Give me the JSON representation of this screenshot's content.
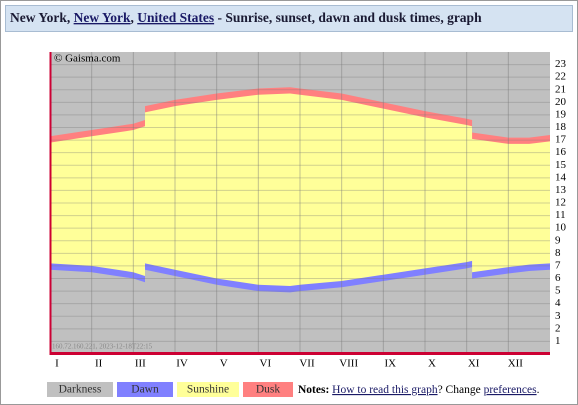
{
  "header": {
    "city": "New York",
    "separator": ", ",
    "region": "New York",
    "country": "United States",
    "suffix": " - Sunrise, sunset, dawn and dusk times, graph"
  },
  "chart_data": {
    "type": "area",
    "copyright": "© Gaisma.com",
    "stamp": "160.72.160.221, 2023-12-18T22:15",
    "x": [
      0,
      1,
      2,
      2.28,
      2.28,
      3,
      4,
      5,
      5.76,
      6,
      7,
      8,
      9,
      10,
      10.13,
      10.13,
      11,
      11.5,
      12
    ],
    "xlim": [
      0,
      12
    ],
    "xticks": [
      {
        "value": 0,
        "label": "I"
      },
      {
        "value": 1,
        "label": "II"
      },
      {
        "value": 2,
        "label": "III"
      },
      {
        "value": 3,
        "label": "IV"
      },
      {
        "value": 4,
        "label": "V"
      },
      {
        "value": 5,
        "label": "VI"
      },
      {
        "value": 6,
        "label": "VII"
      },
      {
        "value": 7,
        "label": "VIII"
      },
      {
        "value": 8,
        "label": "IX"
      },
      {
        "value": 9,
        "label": "X"
      },
      {
        "value": 10,
        "label": "XI"
      },
      {
        "value": 11,
        "label": "XII"
      }
    ],
    "ylim": [
      0,
      24
    ],
    "yticks": [
      1,
      2,
      3,
      4,
      5,
      6,
      7,
      8,
      9,
      10,
      11,
      12,
      13,
      14,
      15,
      16,
      17,
      18,
      19,
      20,
      21,
      22,
      23
    ],
    "grid": true,
    "series": [
      {
        "name": "Darkness",
        "color": "#c0c0c0",
        "values": [
          17.3,
          17.8,
          18.3,
          18.6,
          19.7,
          20.2,
          20.7,
          21.1,
          21.2,
          21.1,
          20.7,
          20.0,
          19.3,
          18.7,
          18.6,
          17.6,
          17.2,
          17.2,
          17.4
        ]
      },
      {
        "name": "Dawn",
        "color": "#8080ff",
        "values": [
          6.7,
          6.5,
          6.0,
          5.7,
          6.7,
          6.2,
          5.5,
          5.0,
          4.9,
          5.0,
          5.3,
          5.8,
          6.3,
          6.8,
          6.9,
          6.0,
          6.4,
          6.6,
          6.7
        ]
      },
      {
        "name": "Sunshine",
        "color": "#ffff99",
        "values": [
          7.2,
          7.0,
          6.5,
          6.2,
          7.2,
          6.7,
          6.0,
          5.5,
          5.4,
          5.5,
          5.8,
          6.3,
          6.8,
          7.3,
          7.4,
          6.5,
          6.9,
          7.1,
          7.2
        ]
      },
      {
        "name": "Dusk",
        "color": "#ff8080",
        "values": [
          16.8,
          17.3,
          17.8,
          18.1,
          19.2,
          19.7,
          20.2,
          20.6,
          20.7,
          20.6,
          20.2,
          19.5,
          18.8,
          18.2,
          18.1,
          17.1,
          16.7,
          16.7,
          16.9
        ]
      }
    ]
  },
  "notes": {
    "label": "Notes:",
    "link": "How to read this graph",
    "text": "? Change ",
    "link2": "preferences",
    "end": "."
  }
}
